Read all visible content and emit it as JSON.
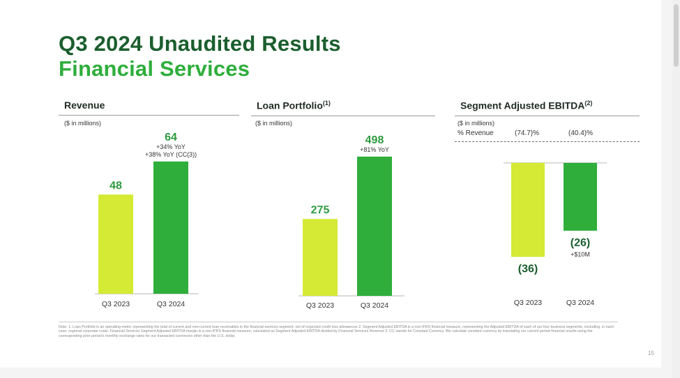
{
  "slide": {
    "title_line1": "Q3 2024 Unaudited Results",
    "title_line2": "Financial Services",
    "page_number": "15",
    "footnote": "Note: 1. Loan Portfolio is an operating metric representing the total of current and non-current loan receivables in the financial services segment, net of expected credit loss allowances 2. Segment Adjusted EBITDA is a non-IFRS financial measure, representing the Adjusted EBITDA of each of our four business segments, excluding, in each case, regional corporate costs. Financial Services Segment Adjusted EBITDA margin is a non-IFRS financial measure, calculated as Segment Adjusted EBITDA divided by Financial Services Revenue 3. CC stands for Constant Currency. We calculate constant currency by translating our current period financial results using the corresponding prior period's monthly exchange rates for our transacted currencies other than the U.S. dollar."
  },
  "colors": {
    "title_dark": "#1b5e2e",
    "title_green": "#2fae3c",
    "bar_prior": "#d4ea35",
    "bar_current": "#2fae3c",
    "label_green": "#2e9a3f"
  },
  "panels": {
    "revenue": {
      "title": "Revenue",
      "sup": "",
      "units": "($ in millions)"
    },
    "loan": {
      "title": "Loan Portfolio",
      "sup": "(1)",
      "units": "($ in millions)"
    },
    "ebitda": {
      "title": "Segment Adjusted EBITDA",
      "sup": "(2)",
      "units": "($ in millions)",
      "metric_label": "% Revenue",
      "metric_values": [
        "(74.7)%",
        "(40.4)%"
      ]
    }
  },
  "chart_data": [
    {
      "type": "bar",
      "title": "Revenue",
      "categories": [
        "Q3 2023",
        "Q3 2024"
      ],
      "values": [
        48,
        64
      ],
      "value_labels": [
        "48",
        "64"
      ],
      "annotations": [
        [],
        [
          "+34% YoY",
          "+38% YoY (CC(3))"
        ]
      ],
      "ylim": [
        0,
        80
      ]
    },
    {
      "type": "bar",
      "title": "Loan Portfolio",
      "categories": [
        "Q3 2023",
        "Q3 2024"
      ],
      "values": [
        275,
        498
      ],
      "value_labels": [
        "275",
        "498"
      ],
      "annotations": [
        [],
        [
          "+81% YoY"
        ]
      ],
      "ylim": [
        0,
        600
      ]
    },
    {
      "type": "bar",
      "title": "Segment Adjusted EBITDA",
      "categories": [
        "Q3 2023",
        "Q3 2024"
      ],
      "values": [
        -36,
        -26
      ],
      "value_labels": [
        "(36)",
        "(26)"
      ],
      "annotations": [
        [],
        [
          "+$10M"
        ]
      ],
      "ylim": [
        -40,
        0
      ]
    }
  ]
}
